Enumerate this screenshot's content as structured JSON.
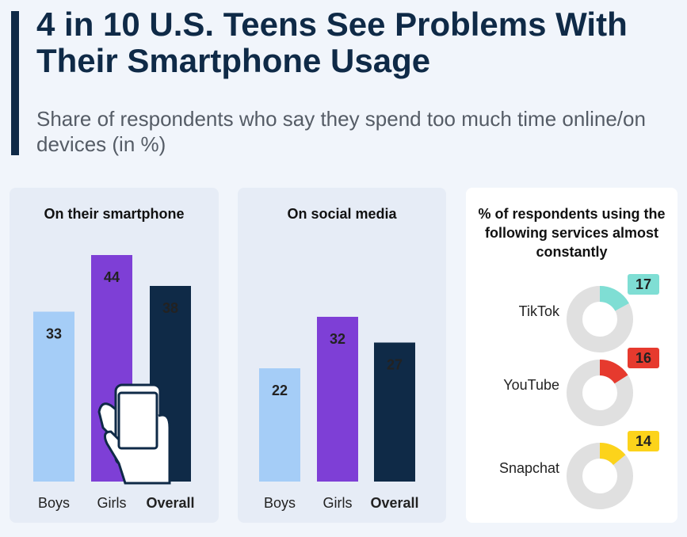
{
  "title": "4 in 10 U.S. Teens See Problems With Their Smartphone Usage",
  "subtitle": "Share of respondents who say they spend too much time online/on devices (in %)",
  "chart_data": [
    {
      "type": "bar",
      "title": "On their smartphone",
      "categories": [
        "Boys",
        "Girls",
        "Overall"
      ],
      "values": [
        33,
        44,
        38
      ],
      "colors": [
        "#a5cdf7",
        "#7e3fd6",
        "#0f2a47"
      ]
    },
    {
      "type": "bar",
      "title": "On social media",
      "categories": [
        "Boys",
        "Girls",
        "Overall"
      ],
      "values": [
        22,
        32,
        27
      ],
      "colors": [
        "#a5cdf7",
        "#7e3fd6",
        "#0f2a47"
      ]
    },
    {
      "type": "donut",
      "title": "% of respondents using the following services almost constantly",
      "categories": [
        "TikTok",
        "YouTube",
        "Snapchat"
      ],
      "values": [
        17,
        16,
        14
      ],
      "colors": [
        "#7fded4",
        "#e63a2e",
        "#fcd31b"
      ]
    }
  ]
}
